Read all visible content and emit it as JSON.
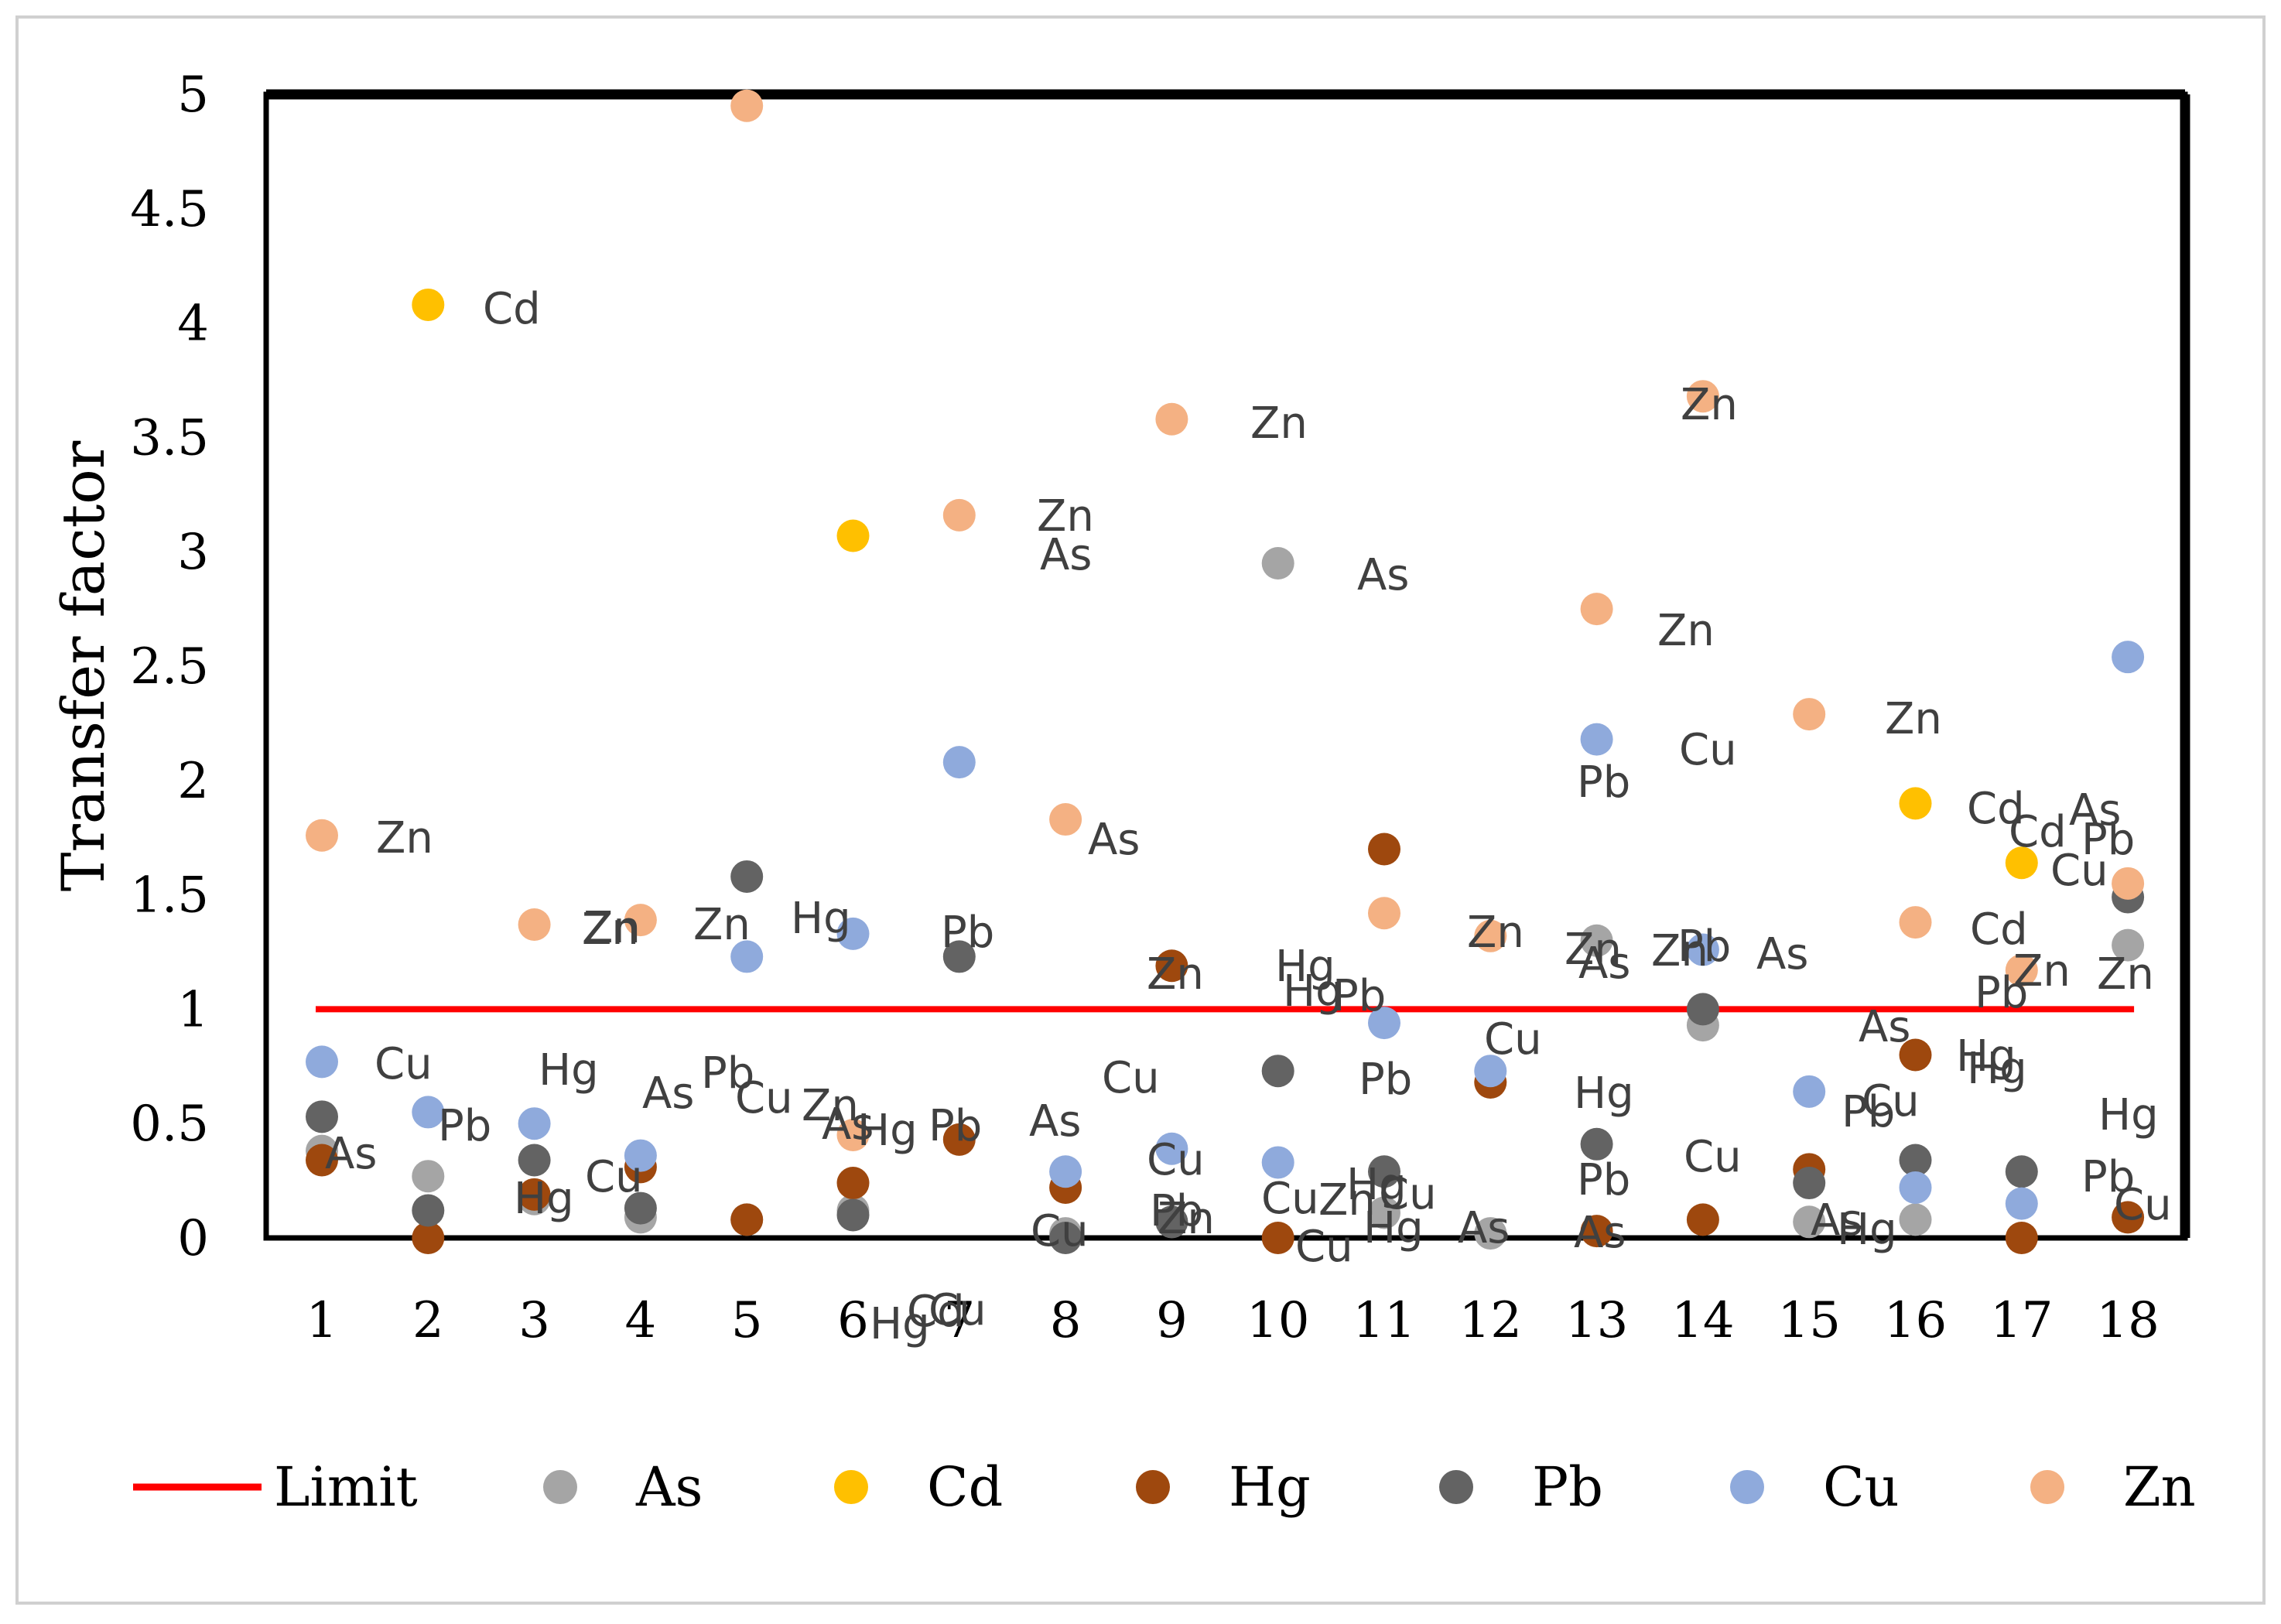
{
  "chart_data": {
    "type": "scatter",
    "title": "",
    "xlabel": "",
    "ylabel": "Transfer factor",
    "x": [
      1,
      2,
      3,
      4,
      5,
      6,
      7,
      8,
      9,
      10,
      11,
      12,
      13,
      14,
      15,
      16,
      17,
      18
    ],
    "x_tick_labels": [
      "1",
      "2",
      "3",
      "4",
      "5",
      "6",
      "7",
      "8",
      "9",
      "10",
      "11",
      "12",
      "13",
      "14",
      "15",
      "16",
      "17",
      "18"
    ],
    "ylim": [
      0,
      5
    ],
    "y_tick_labels": [
      "0",
      "0.5",
      "1",
      "1.5",
      "2",
      "2.5",
      "3",
      "3.5",
      "4",
      "4.5",
      "5"
    ],
    "limit": {
      "name": "Limit",
      "value": 1,
      "color": "#ff0000"
    },
    "series": [
      {
        "name": "As",
        "color": "#a5a5a5",
        "values": [
          0.38,
          0.27,
          0.17,
          0.09,
          0.08,
          0.12,
          null,
          0.02,
          0.07,
          2.95,
          0.11,
          0.02,
          1.3,
          0.93,
          0.07,
          0.08,
          null,
          1.28
        ]
      },
      {
        "name": "Cd",
        "color": "#ffc000",
        "values": [
          null,
          4.08,
          null,
          null,
          null,
          3.07,
          null,
          null,
          null,
          null,
          null,
          null,
          null,
          null,
          null,
          1.9,
          1.64,
          null
        ]
      },
      {
        "name": "Hg",
        "color": "#9e480e",
        "values": [
          0.34,
          0.0,
          0.19,
          0.31,
          0.08,
          0.24,
          0.43,
          0.22,
          1.19,
          0.0,
          1.7,
          0.68,
          0.03,
          0.08,
          0.3,
          0.8,
          0.0,
          0.09
        ]
      },
      {
        "name": "Pb",
        "color": "#636363",
        "values": [
          0.53,
          0.12,
          0.34,
          0.13,
          1.58,
          0.1,
          1.23,
          0.0,
          0.07,
          0.73,
          0.29,
          null,
          0.41,
          1.0,
          0.24,
          0.34,
          0.29,
          1.49
        ]
      },
      {
        "name": "Cu",
        "color": "#8faadc",
        "values": [
          0.77,
          0.55,
          0.5,
          0.36,
          1.23,
          1.33,
          2.08,
          0.29,
          0.39,
          0.33,
          0.94,
          0.73,
          2.18,
          1.26,
          0.64,
          0.22,
          0.15,
          2.54
        ]
      },
      {
        "name": "Zn",
        "color": "#f4b183",
        "values": [
          1.76,
          null,
          1.37,
          1.39,
          4.95,
          0.45,
          3.16,
          1.83,
          3.58,
          null,
          1.42,
          1.32,
          2.75,
          3.68,
          2.29,
          1.38,
          1.17,
          1.55
        ]
      }
    ],
    "data_labels": [
      "Zn",
      "Cu",
      "As",
      "Cd",
      "Pb",
      "Hg",
      "Zn",
      "Cu",
      "Hg",
      "As",
      "Zn",
      "Pb",
      "As",
      "Hg",
      "Zn",
      "Cu",
      "Zn",
      "Cu",
      "Hg",
      "Pb",
      "As",
      "Cd",
      "Zn",
      "Cu",
      "Pb",
      "Hg",
      "As",
      "Zn",
      "Cu",
      "Pb",
      "As",
      "Zn",
      "Cu",
      "Pb",
      "Hg",
      "Zn",
      "Hg",
      "Cu",
      "Zn",
      "Hg",
      "Cu",
      "As",
      "Pb",
      "Cu",
      "As",
      "Hg",
      "Zn",
      "Cu",
      "Pb",
      "Zn",
      "Cu",
      "Pb",
      "Hg",
      "As",
      "Zn",
      "Zn",
      "Cu",
      "Pb",
      "As",
      "Zn",
      "As",
      "Cu",
      "Pb",
      "Hg",
      "Pb",
      "As",
      "Hg",
      "Zn",
      "Cu",
      "Hg",
      "Cd",
      "Zn",
      "Hg",
      "Pb",
      "As",
      "Cd",
      "Zn",
      "Pb",
      "Cu",
      "Cd",
      "As"
    ],
    "legend": {
      "position": "bottom",
      "entries": [
        "Limit",
        "As",
        "Cd",
        "Hg",
        "Pb",
        "Cu",
        "Zn"
      ]
    },
    "grid": false
  }
}
